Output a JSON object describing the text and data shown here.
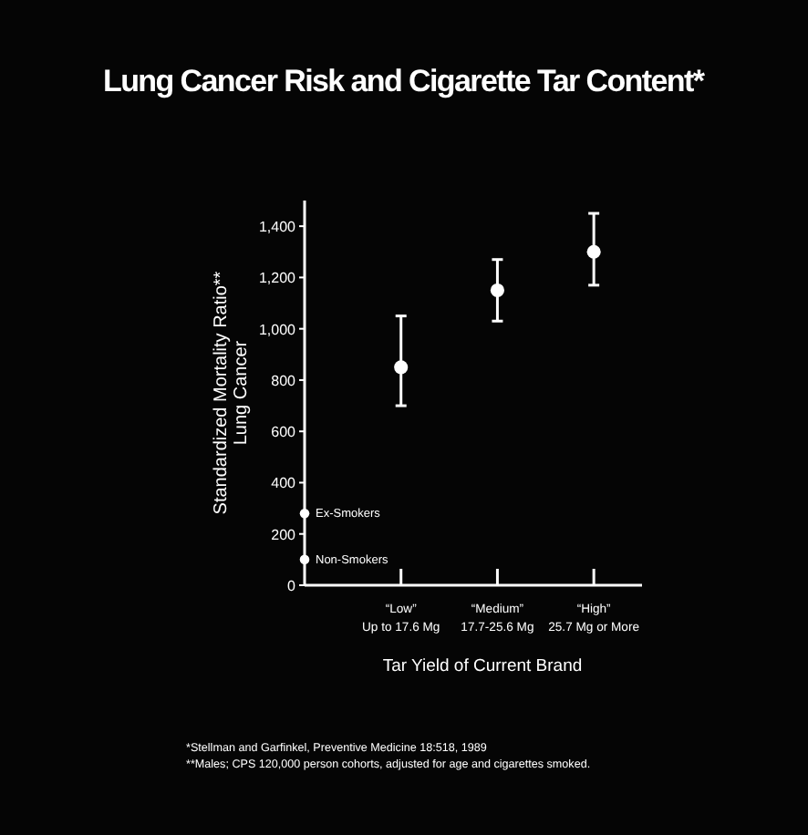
{
  "chart_data": {
    "type": "scatter",
    "title": "Lung Cancer Risk and Cigarette Tar Content*",
    "xlabel": "Tar Yield of Current Brand",
    "ylabel": "Standardized Mortality Ratio**\nLung Cancer",
    "categories": [
      null,
      "“Low”\nUp to 17.6 Mg",
      "“Medium”\n17.7-25.6 Mg",
      "“High”\n25.7 Mg or More"
    ],
    "series": [
      {
        "color": "#ffffff",
        "values": [
          null,
          850,
          1150,
          1300
        ],
        "errors": [
          null,
          [
            700,
            1050
          ],
          [
            1030,
            1270
          ],
          [
            1170,
            1450
          ]
        ]
      },
      {
        "name": "Ex-Smokers",
        "color": "#ffffff",
        "values": [
          280,
          null,
          null,
          null
        ]
      },
      {
        "name": "Non-Smokers",
        "color": "#ffffff",
        "values": [
          100,
          null,
          null,
          null
        ]
      }
    ],
    "marker": "circle",
    "ylim": [
      0,
      1500
    ],
    "yticks": [
      0,
      {
        "value": 200,
        "label": "200"
      },
      {
        "value": 400,
        "label": "400"
      },
      {
        "value": 600,
        "label": "600"
      },
      {
        "value": 800,
        "label": "800"
      },
      {
        "value": 1000,
        "label": "1,000"
      },
      {
        "value": 1200,
        "label": "1,200"
      },
      {
        "value": 1400,
        "label": "1,400"
      }
    ],
    "annotations": [
      "*Stellman and Garfinkel, Preventive Medicine 18:518, 1989",
      "**Males; CPS 120,000 person cohorts, adjusted for age and cigarettes smoked."
    ]
  }
}
